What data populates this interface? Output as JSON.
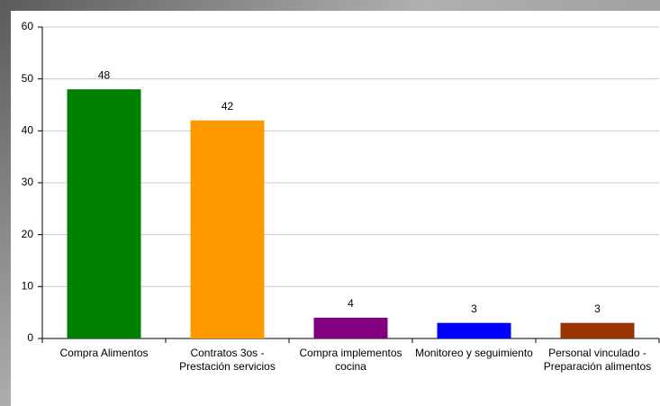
{
  "chart_data": {
    "type": "bar",
    "categories": [
      "Compra Alimentos",
      "Contratos 3os - Prestación servicios",
      "Compra implementos cocina",
      "Monitoreo y seguimiento",
      "Personal vinculado - Preparación alimentos"
    ],
    "values": [
      48,
      42,
      4,
      3,
      3
    ],
    "colors": [
      "#008000",
      "#ff9900",
      "#800080",
      "#0000ff",
      "#993300"
    ],
    "ylim": [
      0,
      60
    ],
    "yticks": [
      0,
      10,
      20,
      30,
      40,
      50,
      60
    ],
    "grid": true
  }
}
